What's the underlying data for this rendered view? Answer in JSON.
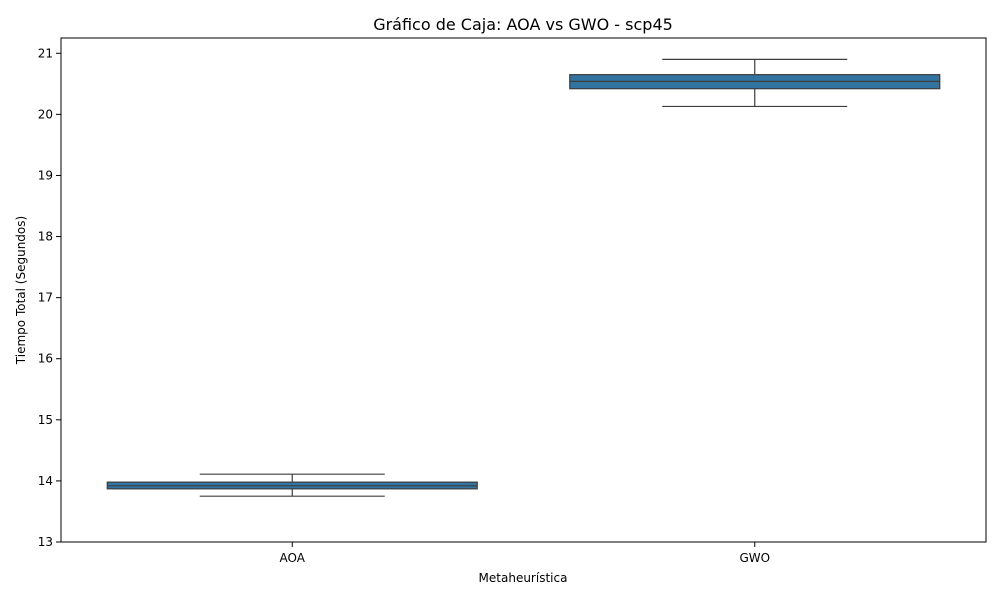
{
  "chart_data": {
    "type": "box",
    "title": "Gráfico de Caja: AOA vs GWO - scp45",
    "xlabel": "Metaheurística",
    "ylabel": "Tiempo Total (Segundos)",
    "ylim": [
      13,
      21.25
    ],
    "yticks": [
      13,
      14,
      15,
      16,
      17,
      18,
      19,
      20,
      21
    ],
    "grid": false,
    "categories": [
      "AOA",
      "GWO"
    ],
    "boxes": [
      {
        "category": "AOA",
        "whisker_low": 13.75,
        "q1": 13.87,
        "median": 13.92,
        "q3": 13.98,
        "whisker_high": 14.11
      },
      {
        "category": "GWO",
        "whisker_low": 20.13,
        "q1": 20.42,
        "median": 20.54,
        "q3": 20.65,
        "whisker_high": 20.9
      }
    ],
    "colors": {
      "box_fill": "#3274a1",
      "line": "#3d3d3d"
    }
  }
}
